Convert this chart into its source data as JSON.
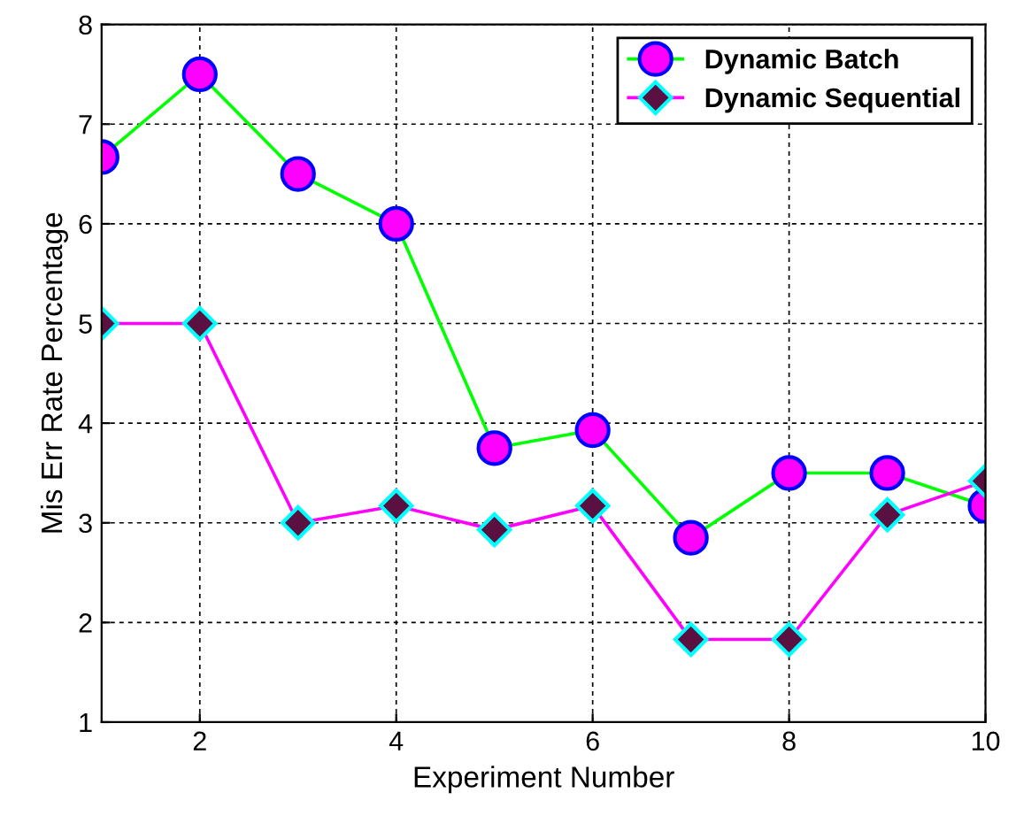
{
  "chart_data": {
    "type": "line",
    "xlabel": "Experiment Number",
    "ylabel": "Mis Err Rate Percentage",
    "x": [
      1,
      2,
      3,
      4,
      5,
      6,
      7,
      8,
      9,
      10
    ],
    "series": [
      {
        "name": "Dynamic Batch",
        "color": "#00ff00",
        "marker": "circle",
        "values": [
          6.67,
          7.5,
          6.5,
          6.0,
          3.75,
          3.93,
          2.85,
          3.5,
          3.5,
          3.17
        ]
      },
      {
        "name": "Dynamic Sequential",
        "color": "#ff00ff",
        "marker": "diamond",
        "values": [
          5.0,
          5.0,
          3.0,
          3.17,
          2.93,
          3.17,
          1.83,
          1.83,
          3.08,
          3.42
        ]
      }
    ],
    "xlim": [
      1,
      10
    ],
    "ylim": [
      1,
      8
    ],
    "xticks": [
      2,
      4,
      6,
      8,
      10
    ],
    "yticks": [
      1,
      2,
      3,
      4,
      5,
      6,
      7,
      8
    ],
    "grid": true,
    "legend": "top right",
    "line_style": "solid"
  }
}
